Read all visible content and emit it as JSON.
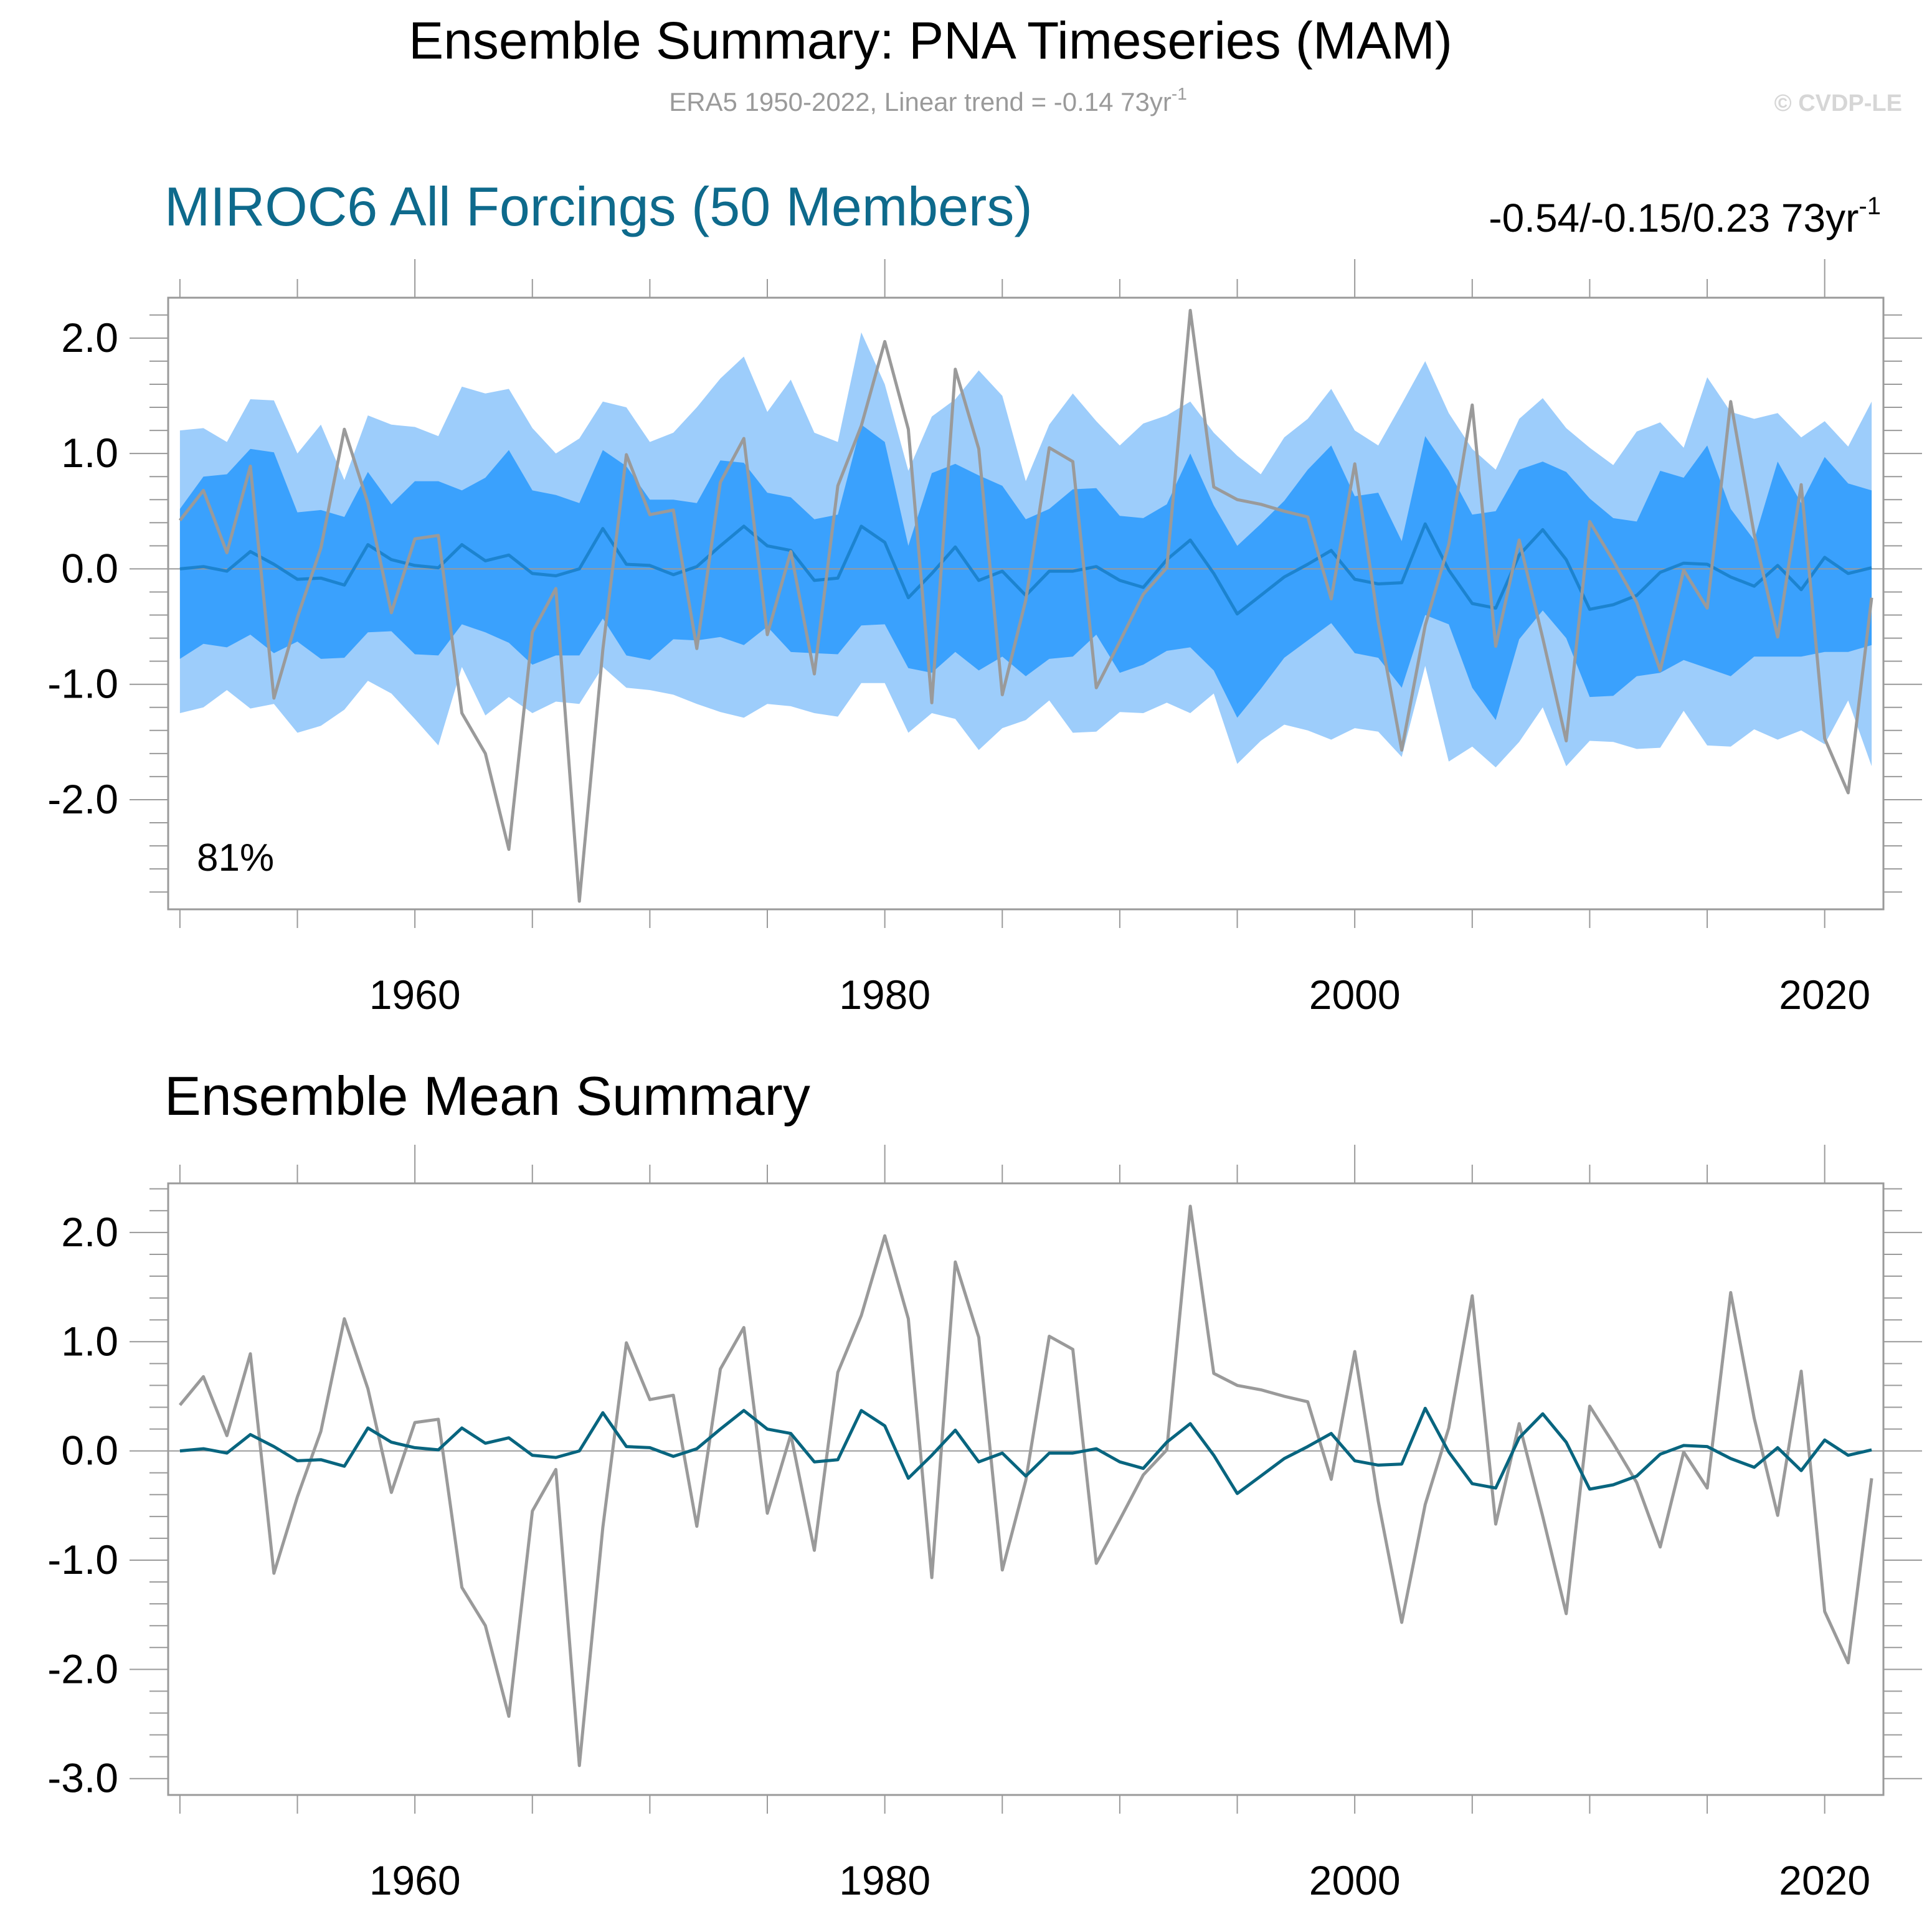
{
  "header": {
    "title": "Ensemble Summary: PNA Timeseries (MAM)",
    "subtitle_main": "ERA5 1950-2022, Linear trend = -0.14 73yr",
    "subtitle_sup": "-1",
    "copyright": "© CVDP-LE"
  },
  "colors": {
    "outer_band": "#9dcdfb",
    "inner_band": "#3aa1fd",
    "member_mean": "#1c83cf",
    "ensemble_mean": "#08657f",
    "observed": "#9a9a9a",
    "panel_title": "#0e6a8c"
  },
  "chart_data": [
    {
      "type": "area",
      "title": "MIROC6 All Forcings (50 Members)",
      "trend_label": "-0.54/-0.15/0.23 73yr",
      "trend_sup": "-1",
      "annotation": "81%",
      "x_start": 1950,
      "x_end": 2022,
      "xlim": [
        1949.5,
        2022.5
      ],
      "ylim": [
        -2.95,
        2.35
      ],
      "xticks": [
        1960,
        1980,
        2000,
        2020
      ],
      "xtick_labels": [
        "1960",
        "1980",
        "2000",
        "2020"
      ],
      "ytick_values": [
        2.0,
        1.0,
        0.0,
        -1.0,
        -2.0
      ],
      "ytick_labels": [
        "2.0",
        "1.0",
        "0.0",
        "-1.0",
        "-2.0"
      ],
      "series": [
        {
          "name": "outer_upper",
          "values": [
            1.2,
            1.22,
            1.1,
            1.47,
            1.46,
            1.0,
            1.25,
            0.77,
            1.33,
            1.25,
            1.23,
            1.15,
            1.58,
            1.52,
            1.56,
            1.22,
            1.0,
            1.13,
            1.45,
            1.4,
            1.1,
            1.18,
            1.4,
            1.65,
            1.84,
            1.36,
            1.64,
            1.18,
            1.1,
            2.05,
            1.6,
            0.85,
            1.32,
            1.47,
            1.72,
            1.5,
            0.76,
            1.25,
            1.52,
            1.28,
            1.07,
            1.26,
            1.33,
            1.45,
            1.18,
            0.98,
            0.82,
            1.14,
            1.3,
            1.56,
            1.2,
            1.07,
            1.43,
            1.8,
            1.35,
            1.04,
            0.86,
            1.3,
            1.48,
            1.22,
            1.05,
            0.9,
            1.19,
            1.27,
            1.05,
            1.66,
            1.36,
            1.3,
            1.35,
            1.14,
            1.28,
            1.06,
            1.45
          ]
        },
        {
          "name": "inner_upper",
          "values": [
            0.52,
            0.8,
            0.82,
            1.04,
            1.01,
            0.49,
            0.51,
            0.45,
            0.84,
            0.56,
            0.76,
            0.76,
            0.68,
            0.79,
            1.03,
            0.68,
            0.64,
            0.57,
            1.03,
            0.89,
            0.6,
            0.6,
            0.57,
            0.94,
            0.92,
            0.66,
            0.62,
            0.43,
            0.47,
            1.25,
            1.1,
            0.2,
            0.83,
            0.91,
            0.81,
            0.72,
            0.43,
            0.52,
            0.69,
            0.7,
            0.46,
            0.44,
            0.56,
            1.0,
            0.55,
            0.2,
            0.39,
            0.59,
            0.86,
            1.07,
            0.63,
            0.66,
            0.24,
            1.15,
            0.85,
            0.47,
            0.5,
            0.86,
            0.93,
            0.84,
            0.61,
            0.44,
            0.41,
            0.85,
            0.79,
            1.07,
            0.52,
            0.25,
            0.93,
            0.57,
            0.97,
            0.74,
            0.68
          ]
        },
        {
          "name": "inner_lower",
          "values": [
            -0.78,
            -0.65,
            -0.68,
            -0.57,
            -0.73,
            -0.63,
            -0.78,
            -0.77,
            -0.55,
            -0.54,
            -0.74,
            -0.75,
            -0.48,
            -0.55,
            -0.64,
            -0.83,
            -0.75,
            -0.75,
            -0.43,
            -0.75,
            -0.79,
            -0.61,
            -0.62,
            -0.59,
            -0.66,
            -0.5,
            -0.72,
            -0.73,
            -0.74,
            -0.49,
            -0.48,
            -0.86,
            -0.9,
            -0.72,
            -0.88,
            -0.76,
            -0.93,
            -0.78,
            -0.76,
            -0.57,
            -0.9,
            -0.83,
            -0.71,
            -0.68,
            -0.88,
            -1.29,
            -1.04,
            -0.77,
            -0.62,
            -0.47,
            -0.73,
            -0.77,
            -1.03,
            -0.4,
            -0.48,
            -1.03,
            -1.31,
            -0.61,
            -0.36,
            -0.6,
            -1.11,
            -1.1,
            -0.93,
            -0.9,
            -0.79,
            -0.86,
            -0.93,
            -0.76,
            -0.76,
            -0.76,
            -0.72,
            -0.72,
            -0.66
          ]
        },
        {
          "name": "outer_lower",
          "values": [
            -1.25,
            -1.2,
            -1.05,
            -1.21,
            -1.17,
            -1.42,
            -1.36,
            -1.22,
            -0.97,
            -1.08,
            -1.3,
            -1.53,
            -0.85,
            -1.27,
            -1.11,
            -1.25,
            -1.15,
            -1.17,
            -0.85,
            -1.03,
            -1.05,
            -1.09,
            -1.17,
            -1.24,
            -1.29,
            -1.17,
            -1.19,
            -1.25,
            -1.28,
            -0.99,
            -0.99,
            -1.42,
            -1.25,
            -1.3,
            -1.57,
            -1.38,
            -1.31,
            -1.14,
            -1.42,
            -1.41,
            -1.24,
            -1.25,
            -1.16,
            -1.25,
            -1.08,
            -1.69,
            -1.49,
            -1.35,
            -1.4,
            -1.48,
            -1.38,
            -1.41,
            -1.63,
            -0.84,
            -1.67,
            -1.54,
            -1.72,
            -1.5,
            -1.2,
            -1.71,
            -1.49,
            -1.5,
            -1.56,
            -1.55,
            -1.23,
            -1.53,
            -1.54,
            -1.39,
            -1.48,
            -1.4,
            -1.52,
            -1.14,
            -1.71
          ]
        },
        {
          "name": "member_mean",
          "values": [
            0.0,
            0.02,
            -0.02,
            0.15,
            0.04,
            -0.09,
            -0.08,
            -0.14,
            0.21,
            0.08,
            0.03,
            0.01,
            0.21,
            0.07,
            0.12,
            -0.04,
            -0.06,
            0.0,
            0.35,
            0.04,
            0.03,
            -0.05,
            0.02,
            0.2,
            0.37,
            0.2,
            0.16,
            -0.1,
            -0.08,
            0.37,
            0.23,
            -0.25,
            -0.04,
            0.19,
            -0.1,
            -0.02,
            -0.23,
            -0.02,
            -0.02,
            0.02,
            -0.1,
            -0.16,
            0.08,
            0.25,
            -0.04,
            -0.39,
            -0.23,
            -0.07,
            0.04,
            0.16,
            -0.09,
            -0.13,
            -0.12,
            0.39,
            -0.01,
            -0.3,
            -0.34,
            0.12,
            0.34,
            0.08,
            -0.35,
            -0.31,
            -0.23,
            -0.03,
            0.05,
            0.04,
            -0.07,
            -0.15,
            0.03,
            -0.18,
            0.1,
            -0.04,
            0.01
          ]
        },
        {
          "name": "observed",
          "values": [
            0.42,
            0.68,
            0.14,
            0.89,
            -1.12,
            -0.42,
            0.18,
            1.21,
            0.57,
            -0.38,
            0.26,
            0.29,
            -1.25,
            -1.6,
            -2.43,
            -0.55,
            -0.17,
            -2.88,
            -0.7,
            0.99,
            0.47,
            0.51,
            -0.69,
            0.75,
            1.13,
            -0.57,
            0.15,
            -0.91,
            0.72,
            1.24,
            1.97,
            1.21,
            -1.16,
            1.73,
            1.04,
            -1.09,
            -0.27,
            1.05,
            0.93,
            -1.03,
            -0.63,
            -0.22,
            0.01,
            2.24,
            0.71,
            0.6,
            0.56,
            0.5,
            0.45,
            -0.26,
            0.91,
            -0.46,
            -1.57,
            -0.49,
            0.21,
            1.42,
            -0.67,
            0.25,
            -0.6,
            -1.49,
            0.41,
            0.07,
            -0.29,
            -0.88,
            -0.01,
            -0.34,
            1.45,
            0.3,
            -0.59,
            0.73,
            -1.47,
            -1.94,
            -0.25
          ]
        }
      ]
    },
    {
      "type": "line",
      "title": "Ensemble Mean Summary",
      "x_start": 1950,
      "x_end": 2022,
      "xlim": [
        1949.5,
        2022.5
      ],
      "ylim": [
        -3.15,
        2.45
      ],
      "xticks": [
        1960,
        1980,
        2000,
        2020
      ],
      "xtick_labels": [
        "1960",
        "1980",
        "2000",
        "2020"
      ],
      "ytick_values": [
        2.0,
        1.0,
        0.0,
        -1.0,
        -2.0,
        -3.0
      ],
      "ytick_labels": [
        "2.0",
        "1.0",
        "0.0",
        "-1.0",
        "-2.0",
        "-3.0"
      ],
      "series": [
        {
          "name": "ensemble_mean",
          "values": [
            0.0,
            0.02,
            -0.02,
            0.15,
            0.04,
            -0.09,
            -0.08,
            -0.14,
            0.21,
            0.08,
            0.03,
            0.01,
            0.21,
            0.07,
            0.12,
            -0.04,
            -0.06,
            0.0,
            0.35,
            0.04,
            0.03,
            -0.05,
            0.02,
            0.2,
            0.37,
            0.2,
            0.16,
            -0.1,
            -0.08,
            0.37,
            0.23,
            -0.25,
            -0.04,
            0.19,
            -0.1,
            -0.02,
            -0.23,
            -0.02,
            -0.02,
            0.02,
            -0.1,
            -0.16,
            0.08,
            0.25,
            -0.04,
            -0.39,
            -0.23,
            -0.07,
            0.04,
            0.16,
            -0.09,
            -0.13,
            -0.12,
            0.39,
            -0.01,
            -0.3,
            -0.34,
            0.12,
            0.34,
            0.08,
            -0.35,
            -0.31,
            -0.23,
            -0.03,
            0.05,
            0.04,
            -0.07,
            -0.15,
            0.03,
            -0.18,
            0.1,
            -0.04,
            0.01
          ]
        },
        {
          "name": "observed",
          "values": [
            0.42,
            0.68,
            0.14,
            0.89,
            -1.12,
            -0.42,
            0.18,
            1.21,
            0.57,
            -0.38,
            0.26,
            0.29,
            -1.25,
            -1.6,
            -2.43,
            -0.55,
            -0.17,
            -2.88,
            -0.7,
            0.99,
            0.47,
            0.51,
            -0.69,
            0.75,
            1.13,
            -0.57,
            0.15,
            -0.91,
            0.72,
            1.24,
            1.97,
            1.21,
            -1.16,
            1.73,
            1.04,
            -1.09,
            -0.27,
            1.05,
            0.93,
            -1.03,
            -0.63,
            -0.22,
            0.01,
            2.24,
            0.71,
            0.6,
            0.56,
            0.5,
            0.45,
            -0.26,
            0.91,
            -0.46,
            -1.57,
            -0.49,
            0.21,
            1.42,
            -0.67,
            0.25,
            -0.6,
            -1.49,
            0.41,
            0.07,
            -0.29,
            -0.88,
            -0.01,
            -0.34,
            1.45,
            0.3,
            -0.59,
            0.73,
            -1.47,
            -1.94,
            -0.25
          ]
        }
      ]
    }
  ]
}
